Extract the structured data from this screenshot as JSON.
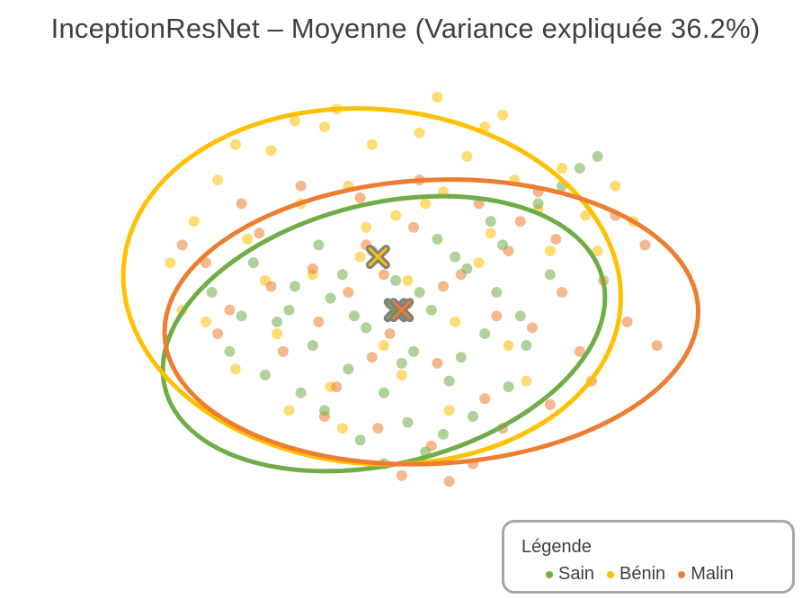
{
  "chart_data": {
    "type": "scatter",
    "title": "InceptionResNet – Moyenne (Variance expliquée 36.2%)",
    "xlabel": "",
    "ylabel": "",
    "xlim": [
      -4.5,
      5.5
    ],
    "ylim": [
      -3.4,
      3.6
    ],
    "grid": false,
    "axes_visible": false,
    "legend": {
      "title": "Légende",
      "placement": "bottom-right",
      "entries": [
        "Sain",
        "Bénin",
        "Malin"
      ]
    },
    "series": [
      {
        "name": "Sain",
        "color": "#70ad47",
        "centroid": [
          0.2,
          -0.2
        ],
        "ellipse": {
          "center": [
            0.0,
            -0.6
          ],
          "semi_axes": [
            3.8,
            2.2
          ],
          "rotation_deg": 14
        },
        "points": [
          [
            -1.8,
            -0.4
          ],
          [
            -1.5,
            0.2
          ],
          [
            -1.2,
            -0.8
          ],
          [
            -0.9,
            0.0
          ],
          [
            -0.6,
            -1.2
          ],
          [
            -0.3,
            -0.5
          ],
          [
            0.0,
            -1.6
          ],
          [
            0.2,
            0.3
          ],
          [
            0.5,
            -0.9
          ],
          [
            0.8,
            -0.2
          ],
          [
            1.1,
            -1.4
          ],
          [
            1.4,
            0.5
          ],
          [
            1.7,
            -0.6
          ],
          [
            2.0,
            0.9
          ],
          [
            2.3,
            -0.3
          ],
          [
            -2.2,
            0.6
          ],
          [
            -1.0,
            -1.9
          ],
          [
            0.4,
            -2.1
          ],
          [
            1.0,
            -2.3
          ],
          [
            -0.2,
            0.8
          ],
          [
            0.9,
            1.0
          ],
          [
            1.8,
            1.3
          ],
          [
            2.6,
            1.6
          ],
          [
            3.0,
            1.9
          ],
          [
            -2.6,
            -0.9
          ],
          [
            -2.0,
            -1.3
          ],
          [
            -1.4,
            -1.6
          ],
          [
            0.1,
            -0.1
          ],
          [
            0.6,
            0.1
          ],
          [
            -0.7,
            0.4
          ],
          [
            1.3,
            -1.0
          ],
          [
            2.1,
            -1.5
          ],
          [
            -0.4,
            -2.4
          ],
          [
            0.7,
            -2.6
          ],
          [
            1.5,
            -2.0
          ],
          [
            -1.1,
            0.9
          ],
          [
            -2.9,
            0.1
          ],
          [
            3.3,
            2.2
          ],
          [
            3.6,
            2.4
          ],
          [
            2.8,
            0.4
          ],
          [
            1.9,
            0.1
          ],
          [
            -0.5,
            -0.3
          ],
          [
            0.3,
            -1.1
          ],
          [
            -1.6,
            -0.2
          ],
          [
            0.0,
            -2.8
          ],
          [
            1.2,
            0.7
          ],
          [
            2.4,
            -0.8
          ],
          [
            -2.4,
            -0.3
          ]
        ]
      },
      {
        "name": "Bénin",
        "color": "#ffc000",
        "centroid": [
          -0.1,
          0.7
        ],
        "ellipse": {
          "center": [
            -0.2,
            0.2
          ],
          "semi_axes": [
            4.2,
            3.0
          ],
          "rotation_deg": -5
        },
        "points": [
          [
            -3.2,
            1.3
          ],
          [
            -2.8,
            2.0
          ],
          [
            -2.3,
            1.0
          ],
          [
            -1.9,
            2.5
          ],
          [
            -1.4,
            1.6
          ],
          [
            -1.0,
            2.9
          ],
          [
            -0.6,
            1.9
          ],
          [
            -0.2,
            2.6
          ],
          [
            0.2,
            1.4
          ],
          [
            0.6,
            2.8
          ],
          [
            1.0,
            1.8
          ],
          [
            1.4,
            2.4
          ],
          [
            1.8,
            1.1
          ],
          [
            2.2,
            2.0
          ],
          [
            2.6,
            1.5
          ],
          [
            3.0,
            2.2
          ],
          [
            3.4,
            1.4
          ],
          [
            3.9,
            1.9
          ],
          [
            4.2,
            1.3
          ],
          [
            -3.6,
            0.6
          ],
          [
            -3.0,
            -0.4
          ],
          [
            -2.5,
            -1.2
          ],
          [
            -1.6,
            -1.9
          ],
          [
            -0.7,
            -2.2
          ],
          [
            0.3,
            -1.3
          ],
          [
            1.2,
            -0.4
          ],
          [
            2.1,
            -0.8
          ],
          [
            -1.2,
            0.4
          ],
          [
            -0.4,
            0.7
          ],
          [
            0.4,
            0.3
          ],
          [
            1.6,
            0.6
          ],
          [
            2.8,
            0.8
          ],
          [
            -2.0,
            0.3
          ],
          [
            -0.8,
            3.2
          ],
          [
            0.9,
            3.4
          ],
          [
            1.7,
            2.9
          ],
          [
            -1.5,
            3.0
          ],
          [
            -2.5,
            2.6
          ],
          [
            3.6,
            0.8
          ],
          [
            -3.4,
            -0.2
          ],
          [
            0.0,
            -0.8
          ],
          [
            -0.3,
            1.2
          ],
          [
            0.7,
            1.6
          ],
          [
            2.4,
            -1.4
          ],
          [
            -1.8,
            -0.6
          ],
          [
            1.1,
            -1.9
          ],
          [
            -0.9,
            -1.5
          ],
          [
            2.0,
            3.1
          ]
        ]
      },
      {
        "name": "Malin",
        "color": "#ed7d31",
        "centroid": [
          0.3,
          -0.2
        ],
        "ellipse": {
          "center": [
            0.8,
            -0.4
          ],
          "semi_axes": [
            4.5,
            2.4
          ],
          "rotation_deg": 3
        },
        "points": [
          [
            -3.0,
            0.6
          ],
          [
            -2.6,
            -0.2
          ],
          [
            -2.1,
            1.1
          ],
          [
            -1.7,
            -0.9
          ],
          [
            -1.2,
            0.5
          ],
          [
            -0.8,
            -1.5
          ],
          [
            -0.3,
            0.9
          ],
          [
            0.1,
            -0.6
          ],
          [
            0.5,
            1.2
          ],
          [
            0.9,
            -1.1
          ],
          [
            1.3,
            0.4
          ],
          [
            1.7,
            -1.7
          ],
          [
            2.1,
            0.8
          ],
          [
            2.5,
            -0.5
          ],
          [
            2.9,
            1.0
          ],
          [
            3.3,
            -0.9
          ],
          [
            3.7,
            0.3
          ],
          [
            4.1,
            -0.4
          ],
          [
            4.4,
            0.9
          ],
          [
            -3.4,
            0.9
          ],
          [
            -2.4,
            1.6
          ],
          [
            -1.4,
            1.9
          ],
          [
            -0.4,
            1.7
          ],
          [
            0.6,
            2.0
          ],
          [
            1.6,
            1.6
          ],
          [
            2.6,
            1.8
          ],
          [
            -0.1,
            -2.2
          ],
          [
            0.8,
            -2.5
          ],
          [
            1.5,
            -2.8
          ],
          [
            0.3,
            -3.0
          ],
          [
            1.1,
            -3.1
          ],
          [
            -1.0,
            -2.0
          ],
          [
            2.0,
            -2.2
          ],
          [
            2.8,
            -1.8
          ],
          [
            3.5,
            -1.4
          ],
          [
            -0.6,
            0.1
          ],
          [
            0.4,
            -0.1
          ],
          [
            1.0,
            0.2
          ],
          [
            -1.9,
            0.2
          ],
          [
            3.0,
            0.1
          ],
          [
            4.6,
            -0.8
          ],
          [
            -2.8,
            -0.6
          ],
          [
            0.0,
            0.4
          ],
          [
            1.9,
            -0.3
          ],
          [
            -1.1,
            -0.4
          ],
          [
            2.3,
            1.3
          ],
          [
            -0.2,
            -1.0
          ],
          [
            3.9,
            1.4
          ]
        ]
      }
    ]
  }
}
